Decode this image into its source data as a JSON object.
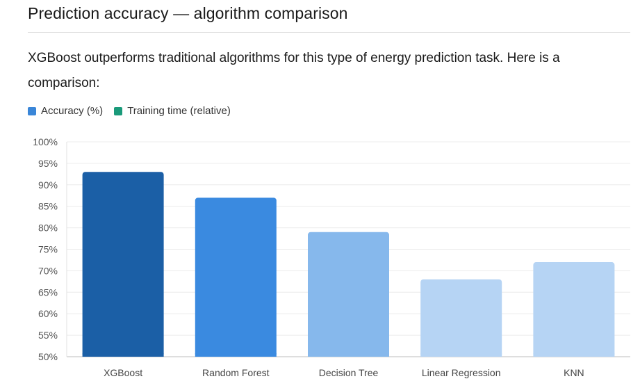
{
  "header": {
    "title": "Prediction accuracy — algorithm comparison"
  },
  "intro": {
    "text": "XGBoost outperforms traditional algorithms for this type of energy prediction task. Here is a comparison:"
  },
  "legend": {
    "items": [
      {
        "label": "Accuracy (%)",
        "color": "#3a86d8"
      },
      {
        "label": "Training time (relative)",
        "color": "#1a9a7a"
      }
    ]
  },
  "chart_data": {
    "type": "bar",
    "title": "",
    "xlabel": "",
    "ylabel": "",
    "categories": [
      "XGBoost",
      "Random Forest",
      "Decision Tree",
      "Linear Regression",
      "KNN"
    ],
    "series": [
      {
        "name": "Accuracy (%)",
        "values": [
          93,
          87,
          79,
          68,
          72
        ],
        "colors": [
          "#1b5fa6",
          "#3a8ae0",
          "#86b8ec",
          "#b6d4f4",
          "#b6d4f4"
        ]
      }
    ],
    "ylim": [
      50,
      100
    ],
    "yticks": [
      50,
      55,
      60,
      65,
      70,
      75,
      80,
      85,
      90,
      95,
      100
    ],
    "ytick_labels": [
      "50%",
      "55%",
      "60%",
      "65%",
      "70%",
      "75%",
      "80%",
      "85%",
      "90%",
      "95%",
      "100%"
    ],
    "grid": true,
    "legend_position": "top-left"
  }
}
